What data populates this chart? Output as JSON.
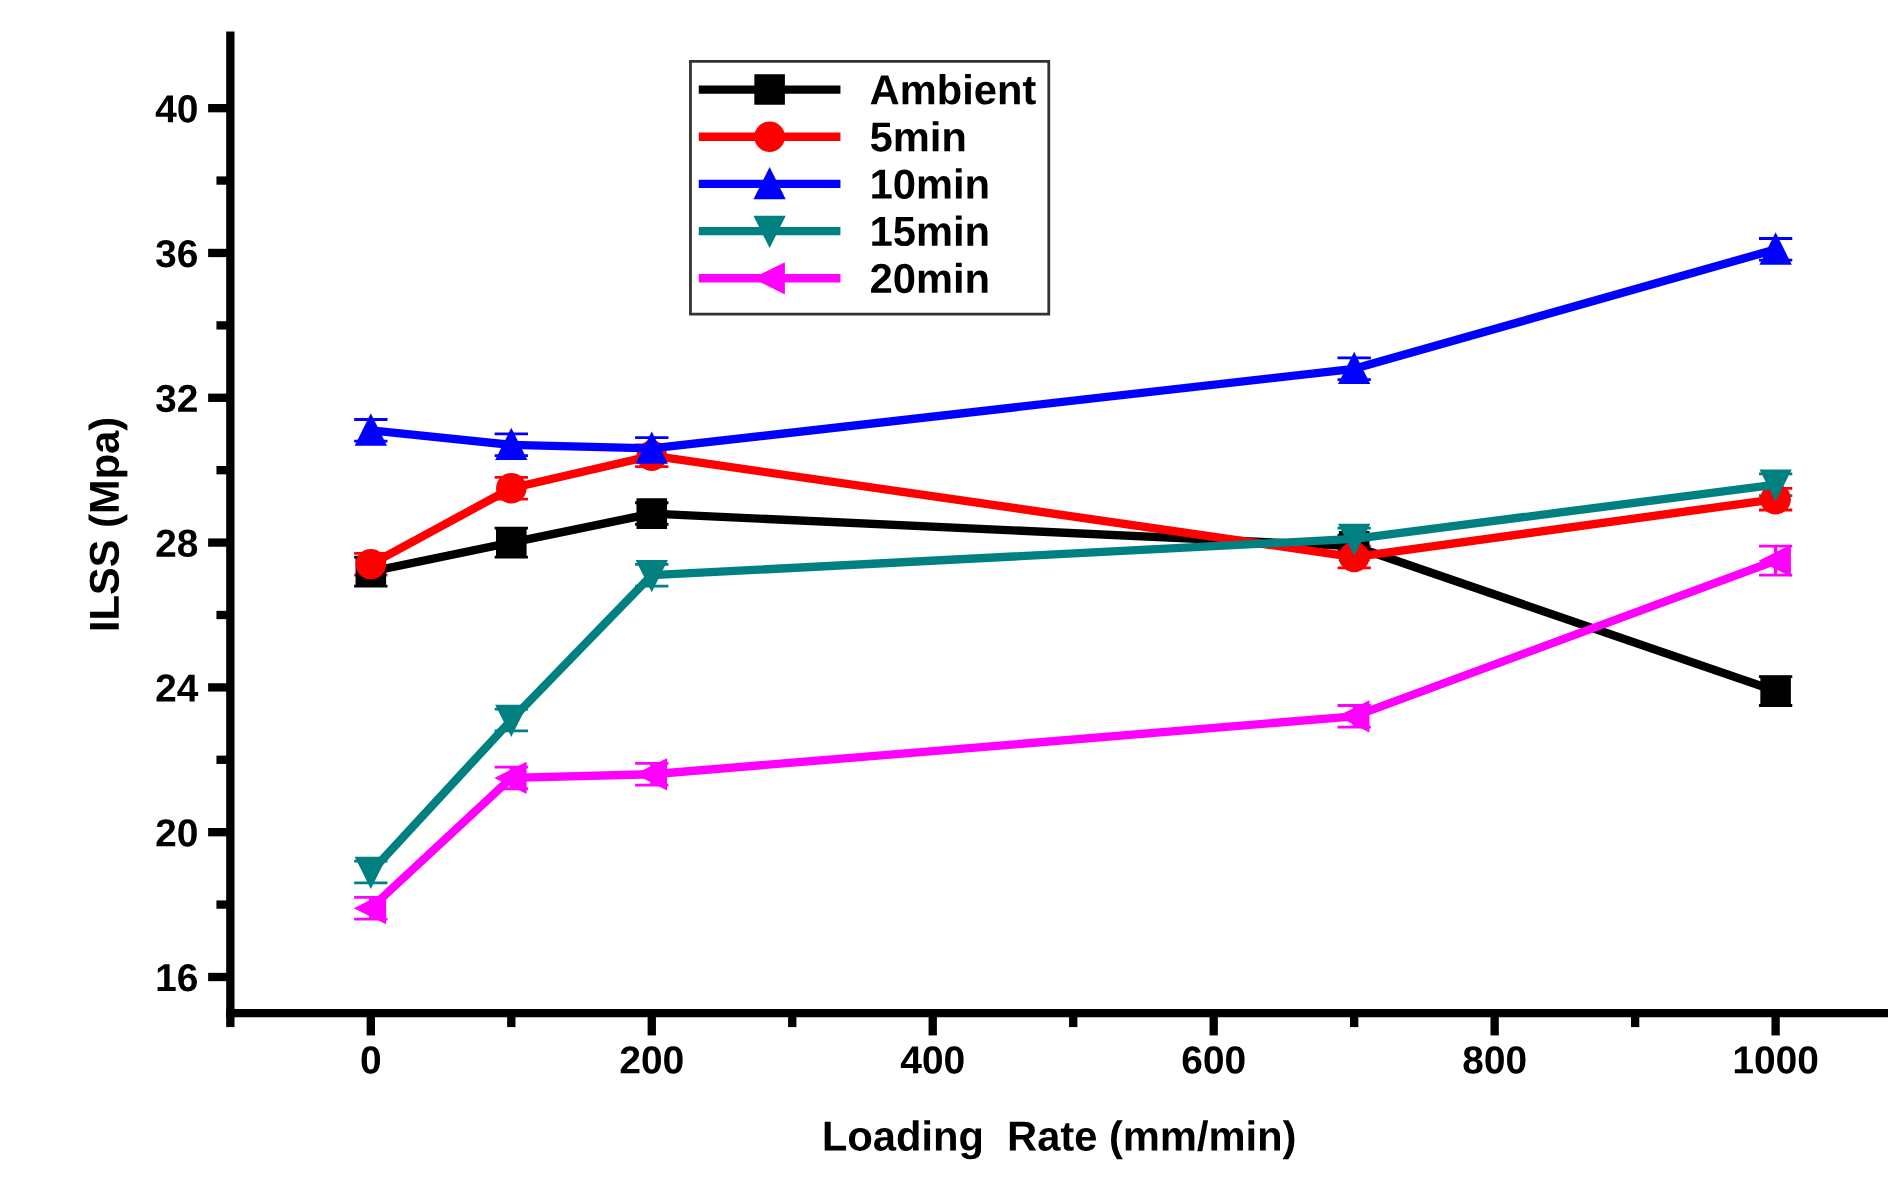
{
  "chart_data": {
    "type": "line",
    "xlabel": "Loading  Rate (mm/min)",
    "ylabel": "ILSS (Mpa)",
    "x": [
      0,
      100,
      200,
      700,
      1000
    ],
    "xlim": [
      -100,
      1080
    ],
    "xticks": [
      0,
      200,
      400,
      600,
      800,
      1000
    ],
    "ylim": [
      15,
      42
    ],
    "yticks": [
      16,
      20,
      24,
      28,
      32,
      36,
      40
    ],
    "grid": false,
    "legend": "top",
    "line_style": "solid",
    "series": [
      {
        "name": "Ambient",
        "color": "#000000",
        "marker": "square",
        "values": [
          27.2,
          28.0,
          28.8,
          27.9,
          23.9
        ],
        "errors": [
          0.4,
          0.4,
          0.3,
          0.3,
          0.4
        ]
      },
      {
        "name": "5min",
        "color": "#ff0000",
        "marker": "circle",
        "values": [
          27.4,
          29.5,
          30.4,
          27.6,
          29.2
        ],
        "errors": [
          0.3,
          0.3,
          0.3,
          0.3,
          0.3
        ]
      },
      {
        "name": "10min",
        "color": "#0000ff",
        "marker": "triangle",
        "values": [
          31.1,
          30.7,
          30.6,
          32.8,
          36.1
        ],
        "errors": [
          0.3,
          0.3,
          0.3,
          0.3,
          0.3
        ]
      },
      {
        "name": "15min",
        "color": "#008080",
        "marker": "triangle_down",
        "values": [
          18.9,
          23.1,
          27.1,
          28.1,
          29.6
        ],
        "errors": [
          0.3,
          0.3,
          0.3,
          0.3,
          0.3
        ]
      },
      {
        "name": "20min",
        "color": "#ff00ff",
        "marker": "triangle_left",
        "values": [
          17.9,
          21.5,
          21.6,
          23.2,
          27.5
        ],
        "errors": [
          0.3,
          0.3,
          0.3,
          0.3,
          0.4
        ]
      }
    ]
  }
}
